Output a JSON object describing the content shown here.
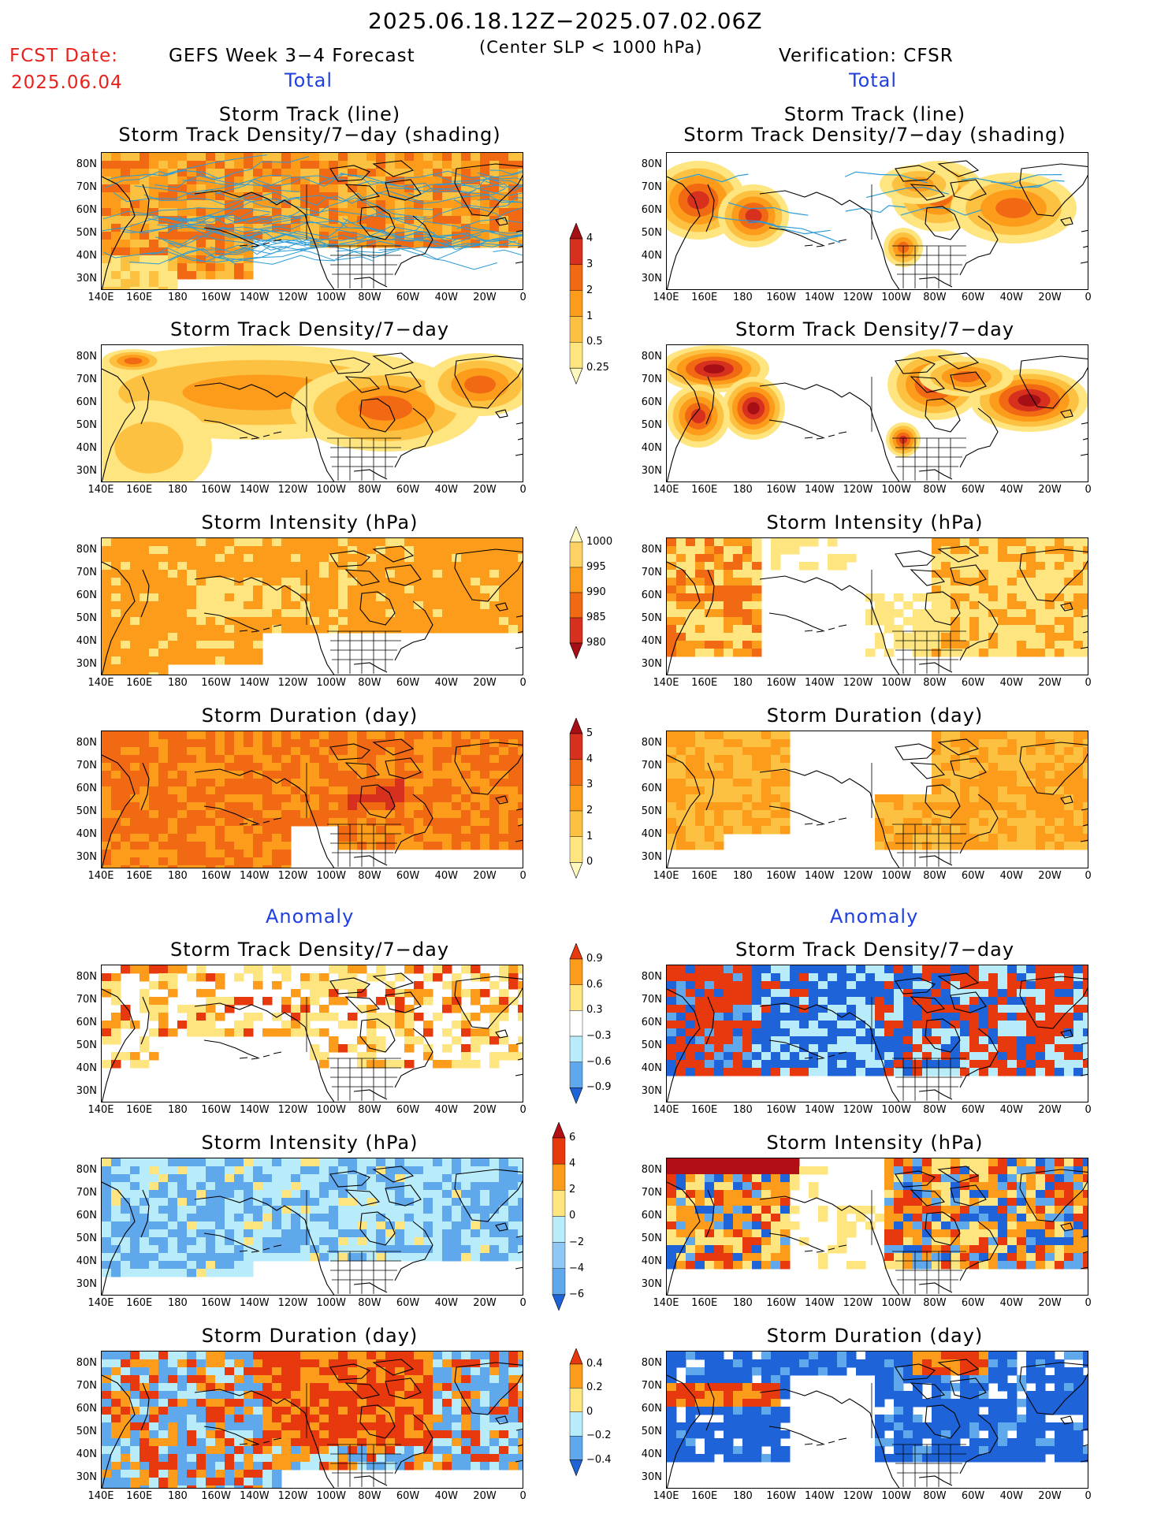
{
  "header": {
    "date_range": "2025.06.18.12Z−2025.07.02.06Z",
    "subtitle": "(Center SLP < 1000 hPa)",
    "fcst_label": "FCST Date:",
    "fcst_date": "2025.06.04",
    "model_title": "GEFS Week 3−4 Forecast",
    "verification": "Verification: CFSR"
  },
  "sections": {
    "total_left": "Total",
    "total_right": "Total",
    "anomaly_left": "Anomaly",
    "anomaly_right": "Anomaly"
  },
  "panel_titles": {
    "track_line": "Storm Track (line)",
    "track_shading": "Storm Track Density/7−day (shading)",
    "density": "Storm Track Density/7−day",
    "intensity": "Storm Intensity (hPa)",
    "duration": "Storm Duration (day)"
  },
  "axes": {
    "lat_labels": [
      "80N",
      "70N",
      "60N",
      "50N",
      "40N",
      "30N"
    ],
    "lon_labels": [
      "140E",
      "160E",
      "180",
      "160W",
      "140W",
      "120W",
      "100W",
      "80W",
      "60W",
      "40W",
      "20W",
      "0"
    ]
  },
  "colorbars": {
    "density_total": {
      "labels": [
        "4",
        "3",
        "2",
        "1",
        "0.5",
        "0.25"
      ],
      "colors": [
        "#a50f15",
        "#d7301f",
        "#f16913",
        "#fd9c1a",
        "#fdc142",
        "#fee57f",
        "#fff8bc"
      ]
    },
    "intensity_total": {
      "labels": [
        "1000",
        "995",
        "990",
        "985",
        "980"
      ],
      "colors": [
        "#fff8bc",
        "#fdd163",
        "#fd9c1a",
        "#f16913",
        "#d7301f",
        "#a50f15"
      ]
    },
    "duration_total": {
      "labels": [
        "5",
        "4",
        "3",
        "2",
        "1",
        "0"
      ],
      "colors": [
        "#a50f15",
        "#d7301f",
        "#f16913",
        "#fd9c1a",
        "#fdc142",
        "#fee57f",
        "#fff8bc"
      ]
    },
    "density_anom": {
      "labels": [
        "0.9",
        "0.6",
        "0.3",
        "−0.3",
        "−0.6",
        "−0.9"
      ],
      "colors": [
        "#e8380d",
        "#fd9c1a",
        "#fee57f",
        "#ffffff",
        "#b9ecfa",
        "#5fa8ec",
        "#1e64d8"
      ]
    },
    "intensity_anom": {
      "labels": [
        "6",
        "4",
        "2",
        "0",
        "−2",
        "−4",
        "−6"
      ],
      "colors": [
        "#b10f15",
        "#e8380d",
        "#fd9c1a",
        "#fee57f",
        "#b9ecfa",
        "#8fc8f4",
        "#5fa8ec",
        "#1e64d8"
      ]
    },
    "duration_anom": {
      "labels": [
        "0.4",
        "0.2",
        "0",
        "−0.2",
        "−0.4"
      ],
      "colors": [
        "#e8380d",
        "#fd9c1a",
        "#fee57f",
        "#b9ecfa",
        "#5fa8ec",
        "#1e64d8"
      ]
    }
  },
  "fills": {
    "total_warm": [
      "#fff8bc",
      "#fee57f",
      "#fdc142",
      "#fd9c1a",
      "#f16913",
      "#d7301f",
      "#a50f15"
    ],
    "anom": [
      "#1e64d8",
      "#5fa8ec",
      "#b9ecfa",
      "#ffffff",
      "#fee57f",
      "#fd9c1a",
      "#e8380d",
      "#b10f15"
    ],
    "track_line_color": "#2b9bd7"
  }
}
